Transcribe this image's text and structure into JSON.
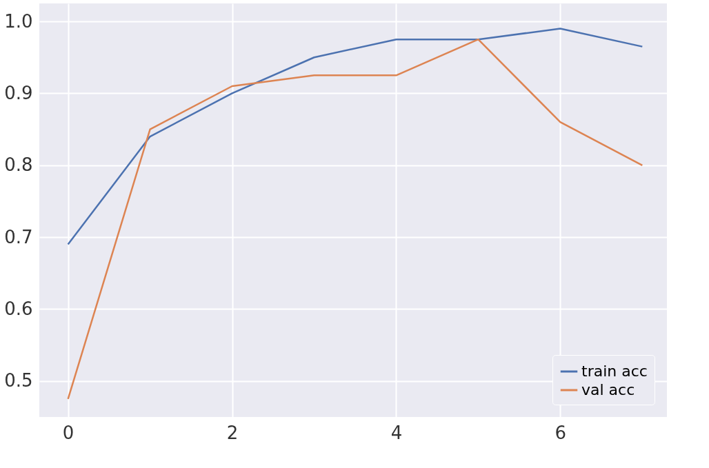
{
  "chart_data": {
    "type": "line",
    "x": [
      0,
      1,
      2,
      3,
      4,
      5,
      6,
      7
    ],
    "series": [
      {
        "name": "train acc",
        "color": "#4c72b0",
        "values": [
          0.69,
          0.84,
          0.9,
          0.95,
          0.975,
          0.975,
          0.99,
          0.965
        ]
      },
      {
        "name": "val acc",
        "color": "#dd8452",
        "values": [
          0.475,
          0.85,
          0.91,
          0.925,
          0.925,
          0.975,
          0.86,
          0.8
        ]
      }
    ],
    "xlim": [
      -0.35,
      7.3
    ],
    "ylim": [
      0.45,
      1.025
    ],
    "xticks": [
      0,
      2,
      4,
      6
    ],
    "yticks": [
      0.5,
      0.6,
      0.7,
      0.8,
      0.9,
      {
        "value": 1,
        "label": "1.0"
      }
    ],
    "grid": true,
    "legend": "bottom right",
    "marker": "none",
    "line_style": "solid"
  }
}
